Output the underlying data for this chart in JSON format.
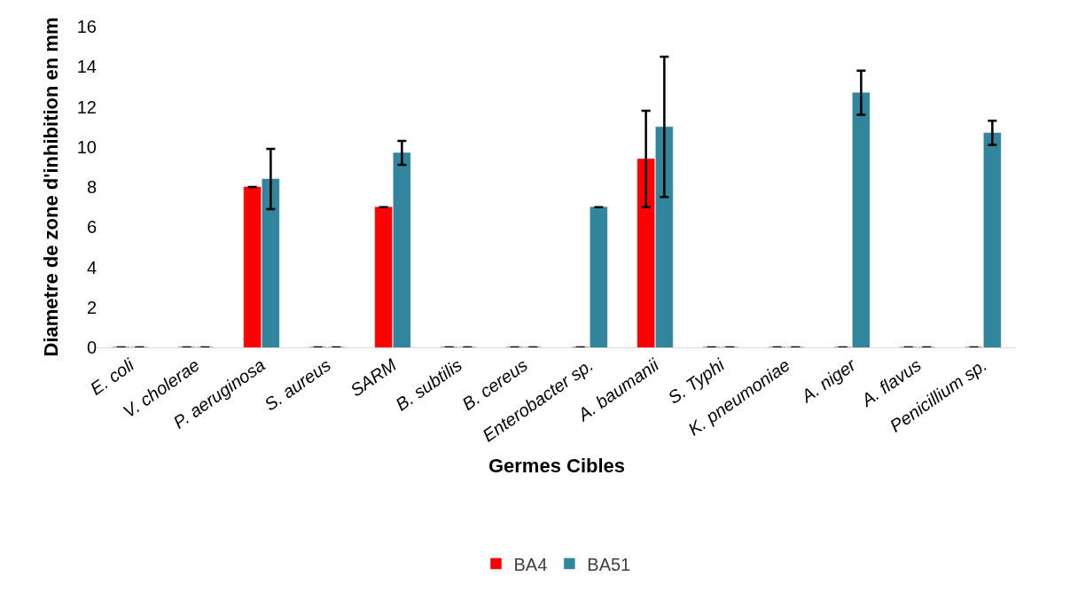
{
  "chart_data": {
    "type": "bar",
    "xlabel": "Germes Cibles",
    "ylabel": "Diametre de zone d'inhibition en mm",
    "categories": [
      "E. coli",
      "V. cholerae",
      "P. aeruginosa",
      "S. aureus",
      "SARM",
      "B. subtilis",
      "B. cereus",
      "Enterobacter sp.",
      "A. baumanii",
      "S. Typhi",
      "K. pneumoniae",
      "A. niger",
      "A. flavus",
      "Penicillium sp."
    ],
    "series": [
      {
        "name": "BA4",
        "color": "#ff0000",
        "values": [
          0,
          0,
          8.0,
          0,
          7.0,
          0,
          0,
          0,
          9.4,
          0,
          0,
          0,
          0,
          0
        ],
        "errors": [
          0,
          0,
          0,
          0,
          0,
          0,
          0,
          0,
          2.4,
          0,
          0,
          0,
          0,
          0
        ]
      },
      {
        "name": "BA51",
        "color": "#31859c",
        "values": [
          0,
          0,
          8.4,
          0,
          9.7,
          0,
          0,
          7.0,
          11.0,
          0,
          0,
          12.7,
          0,
          10.7
        ],
        "errors": [
          0,
          0,
          1.5,
          0,
          0.6,
          0,
          0,
          0,
          3.5,
          0,
          0,
          1.1,
          0,
          0.6
        ]
      }
    ],
    "ylim": [
      0,
      16
    ],
    "yticks": [
      0,
      2,
      4,
      6,
      8,
      10,
      12,
      14,
      16
    ],
    "legend": "bottom"
  }
}
